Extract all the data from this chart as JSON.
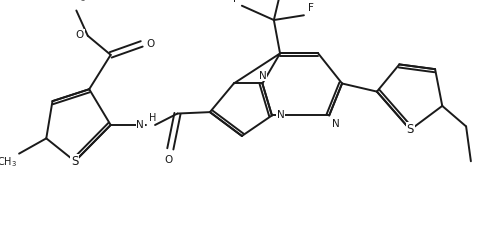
{
  "background_color": "#ffffff",
  "line_color": "#1a1a1a",
  "line_width": 1.4,
  "font_size": 7.5,
  "figsize": [
    4.79,
    2.29
  ],
  "dpi": 100,
  "xlim": [
    0,
    10
  ],
  "ylim": [
    0,
    4.8
  ]
}
